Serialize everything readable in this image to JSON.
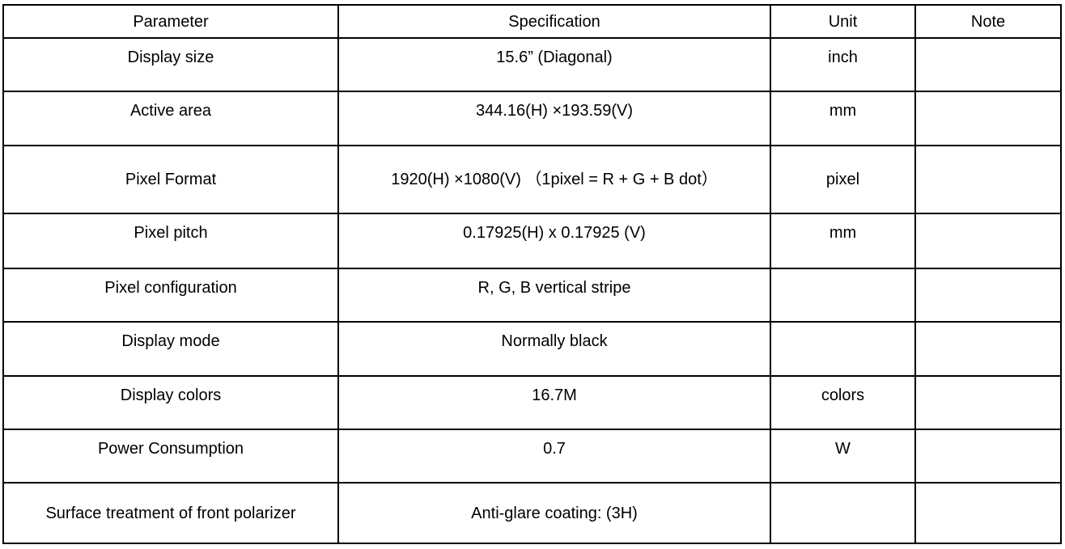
{
  "table": {
    "headers": [
      "Parameter",
      "Specification",
      "Unit",
      "Note"
    ],
    "rows": [
      {
        "parameter": "Display size",
        "specification": "15.6” (Diagonal)",
        "unit": "inch",
        "note": ""
      },
      {
        "parameter": "Active area",
        "specification": "344.16(H) ×193.59(V)",
        "unit": "mm",
        "note": ""
      },
      {
        "parameter": "Pixel Format",
        "specification": "1920(H) ×1080(V) （1pixel = R + G + B dot）",
        "unit": "pixel",
        "note": ""
      },
      {
        "parameter": "Pixel pitch",
        "specification": "0.17925(H) x 0.17925 (V)",
        "unit": "mm",
        "note": ""
      },
      {
        "parameter": "Pixel configuration",
        "specification": "R, G, B vertical stripe",
        "unit": "",
        "note": ""
      },
      {
        "parameter": "Display mode",
        "specification": "Normally black",
        "unit": "",
        "note": ""
      },
      {
        "parameter": "Display colors",
        "specification": "16.7M",
        "unit": "colors",
        "note": ""
      },
      {
        "parameter": "Power Consumption",
        "specification": "0.7",
        "unit": "W",
        "note": ""
      },
      {
        "parameter": "Surface treatment of front polarizer",
        "specification": "Anti-glare coating: (3H)",
        "unit": "",
        "note": ""
      }
    ]
  }
}
